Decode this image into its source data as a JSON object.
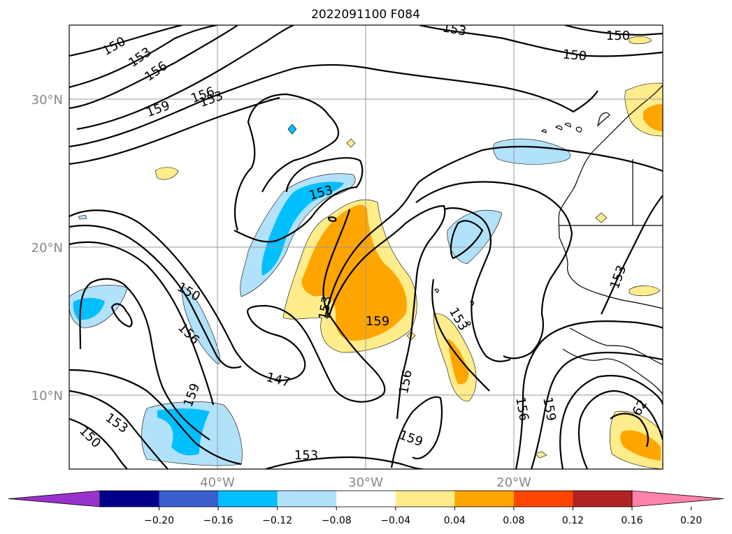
{
  "map": {
    "title": "2022091100 F084",
    "lat_labels": [
      "30°N",
      "20°N",
      "10°N"
    ],
    "lon_labels": [
      "40°W",
      "30°W",
      "20°W"
    ],
    "contour_labels": [
      "150",
      "153",
      "156",
      "159",
      "156",
      "153",
      "153",
      "150",
      "150",
      "153",
      "150",
      "156",
      "159",
      "153",
      "147",
      "153",
      "159",
      "156",
      "159",
      "156",
      "159",
      "153",
      "150",
      "153",
      "62"
    ]
  },
  "colorbar": {
    "ticks": [
      "−0.20",
      "−0.16",
      "−0.12",
      "−0.08",
      "−0.04",
      "0.04",
      "0.08",
      "0.12",
      "0.16",
      "0.20"
    ],
    "colors": [
      "#9932CC",
      "#00008B",
      "#3A5FCD",
      "#00BFFF",
      "#B2E1FA",
      "#FFFFFF",
      "#FFEC8B",
      "#FFA500",
      "#FF4500",
      "#B22222",
      "#FF82AB"
    ],
    "under_color": "#9932CC",
    "over_color": "#FF82AB"
  }
}
